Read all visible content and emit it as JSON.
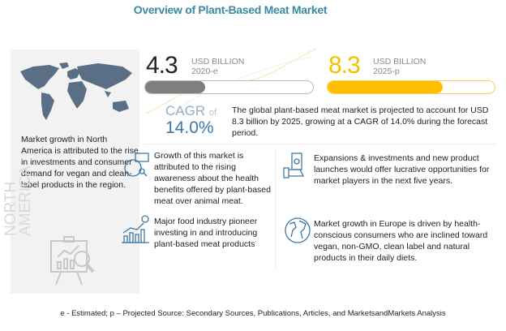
{
  "title": "Overview of Plant-Based Meat Market",
  "left_panel": {
    "text": "Market growth in North America is attributed to the rise in investments and consumer demand for vegan and clean-label products in the region.",
    "region_label": "NORTH AMERICA"
  },
  "chart_data": {
    "type": "bar",
    "title": "Overview of Plant-Based Meat Market",
    "categories": [
      "2020-e",
      "2025-p"
    ],
    "values": [
      4.3,
      8.3
    ],
    "unit": "USD BILLION",
    "ylim": [
      0,
      12
    ],
    "colors": [
      "#7f7f7f",
      "#ffc000"
    ]
  },
  "metrics": [
    {
      "value": "4.3",
      "unit": "USD BILLION",
      "year": "2020-e",
      "color": "#222222"
    },
    {
      "value": "8.3",
      "unit": "USD BILLION",
      "year": "2025-p",
      "color": "#f5c000"
    }
  ],
  "cagr": {
    "label": "CAGR",
    "of": "of",
    "value": "14.0%"
  },
  "description": "The global plant-based meat market is projected to account for USD 8.3 billion by 2025, growing at a CAGR of 14.0% during the forecast period.",
  "features": [
    {
      "icon": "analytics-icon",
      "text": "Growth of this market is attributed to the rising awareness about the health benefits offered by plant-based meat over animal meat."
    },
    {
      "icon": "money-hand-icon",
      "text": "Expansions & investments and new product launches would offer lucrative opportunities for market players in the next five years."
    },
    {
      "icon": "growth-chart-icon",
      "text": "Major food industry pioneer investing in and introducing plant-based meat products"
    },
    {
      "icon": "globe-icon",
      "text": "Market growth in Europe is driven by health-conscious consumers who are inclined toward vegan, non-GMO, clean label and natural products in their daily diets."
    }
  ],
  "footer": "e - Estimated; p – Projected  Source: Secondary Sources, Publications, Articles, and MarketsandMarkets Analysis"
}
